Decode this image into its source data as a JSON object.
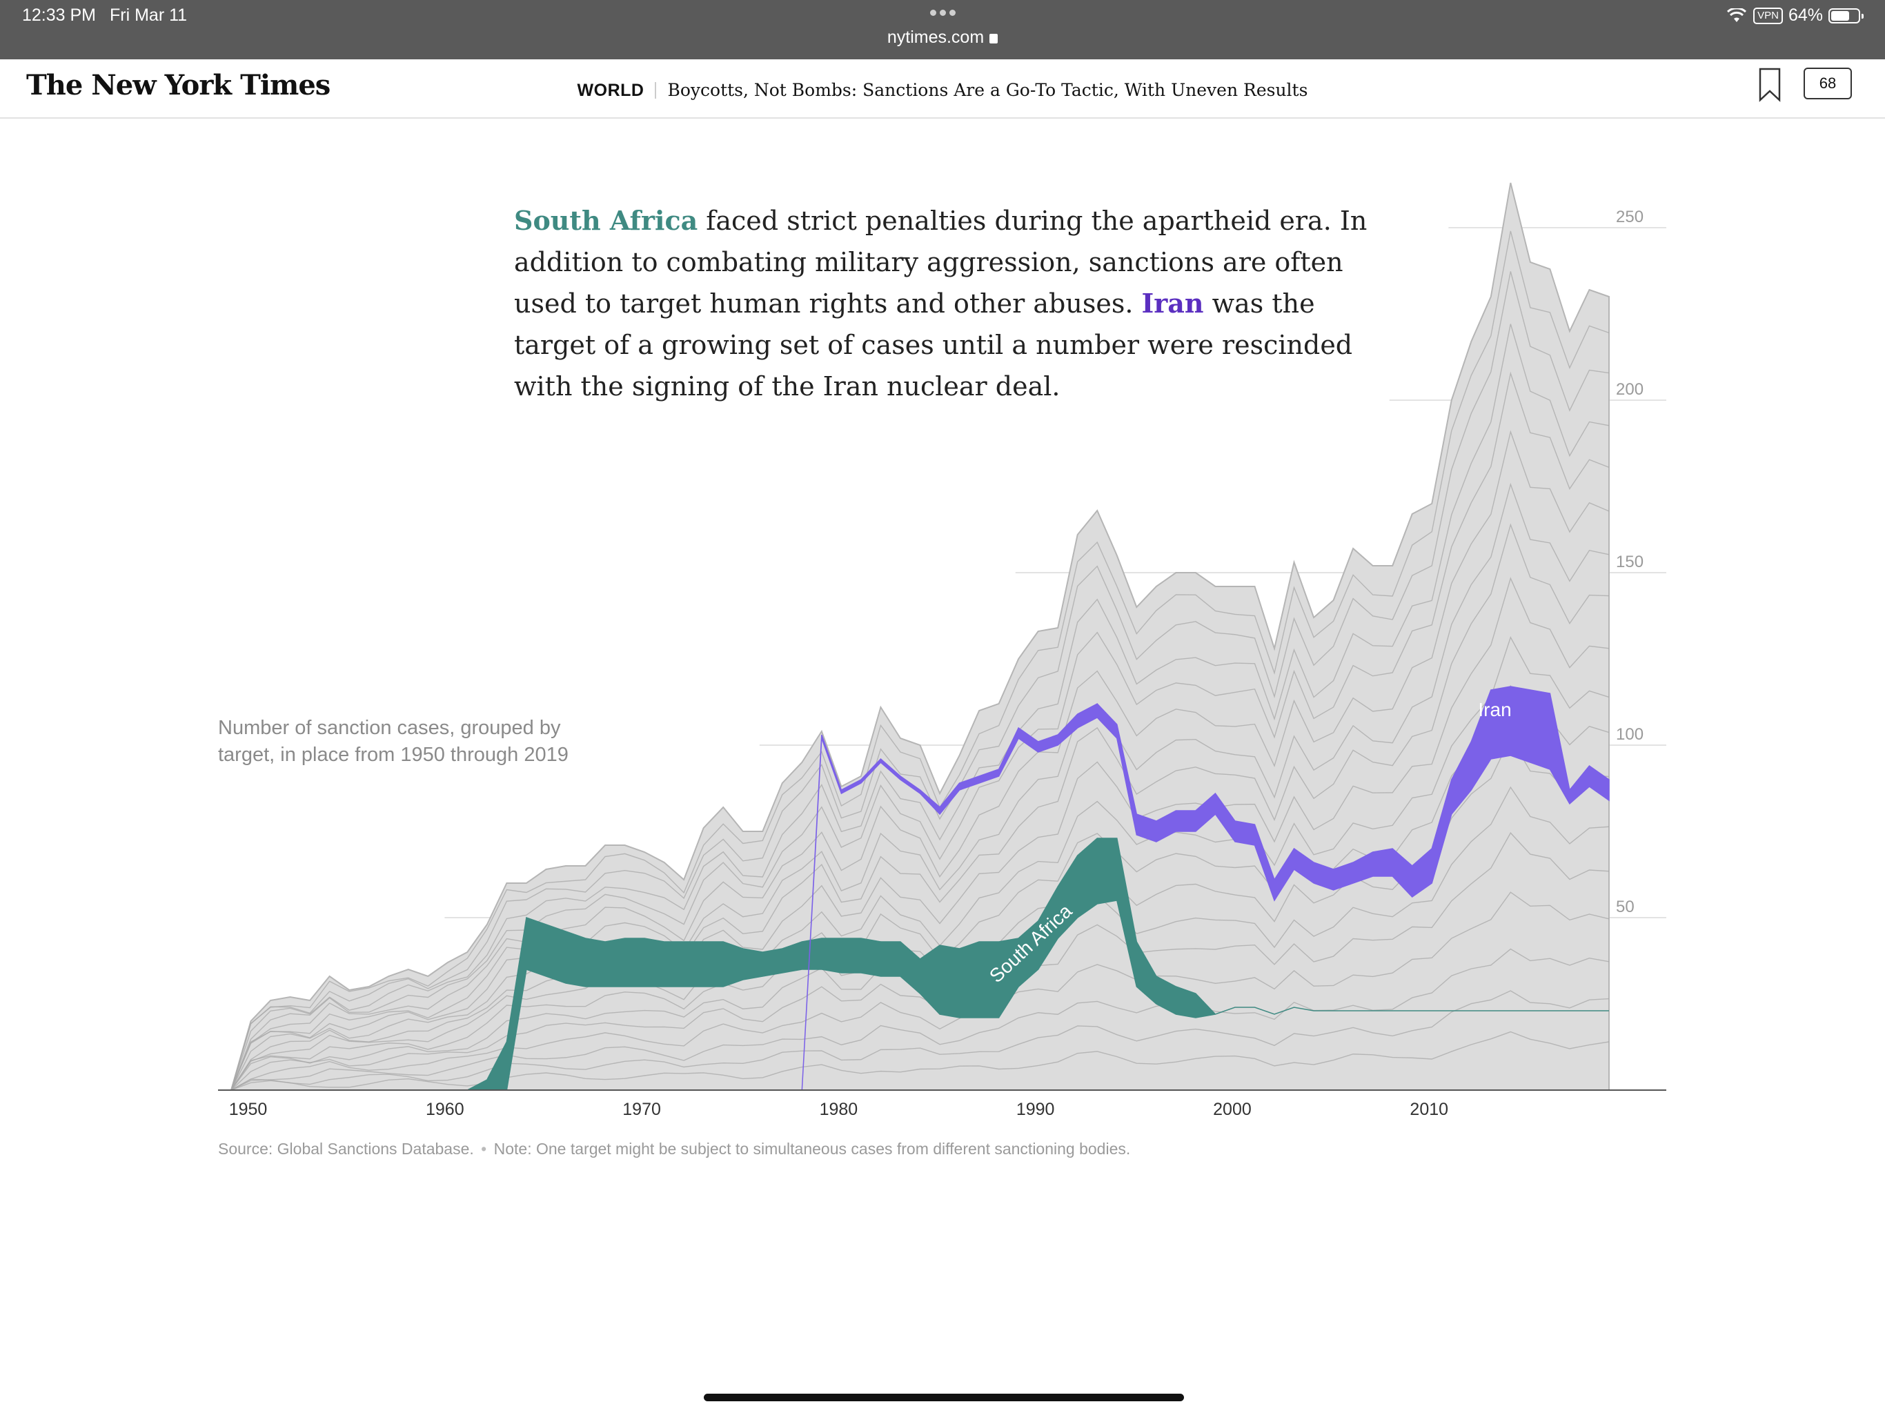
{
  "status_bar": {
    "time": "12:33 PM",
    "date": "Fri Mar 11",
    "url": "nytimes.com",
    "vpn": "VPN",
    "battery": "64%"
  },
  "header": {
    "logo": "The New York Times",
    "section": "WORLD",
    "headline": "Boycotts, Not Bombs: Sanctions Are a Go-To Tactic, With Uneven Results",
    "comment_count": "68"
  },
  "lede": {
    "south_africa": "South Africa",
    "part1": " faced strict penalties during the apartheid era. In addition to combating military aggression, sanctions are often used to target human rights and other abuses. ",
    "iran": "Iran",
    "part2": " was the target of a growing set of cases until a number were rescinded with the signing of the Iran nuclear deal."
  },
  "caption": "Number of sanction cases, grouped by target, in place from 1950 through 2019",
  "source": {
    "source_text": "Source: Global Sanctions Database.",
    "note_text": "Note: One target might be subject to simultaneous cases from different sanctioning bodies."
  },
  "colors": {
    "south_africa": "#3f8a82",
    "iran": "#7b61e8",
    "area": "#dcdcdc",
    "lines": "#a8a8a8"
  },
  "chart_data": {
    "type": "area",
    "title": "",
    "ylabel": "cases",
    "ylim": [
      0,
      260
    ],
    "xlim": [
      1949,
      2019
    ],
    "x_ticks": [
      1950,
      1960,
      1970,
      1980,
      1990,
      2000,
      2010
    ],
    "y_ticks": [
      {
        "value": 50,
        "label": "50"
      },
      {
        "value": 100,
        "label": "100"
      },
      {
        "value": 150,
        "label": "150"
      },
      {
        "value": 200,
        "label": "200"
      },
      {
        "value": 250,
        "label": "250"
      }
    ],
    "y_unit": "cases",
    "years": [
      1949,
      1950,
      1951,
      1952,
      1953,
      1954,
      1955,
      1956,
      1957,
      1958,
      1959,
      1960,
      1961,
      1962,
      1963,
      1964,
      1965,
      1966,
      1967,
      1968,
      1969,
      1970,
      1971,
      1972,
      1973,
      1974,
      1975,
      1976,
      1977,
      1978,
      1979,
      1980,
      1981,
      1982,
      1983,
      1984,
      1985,
      1986,
      1987,
      1988,
      1989,
      1990,
      1991,
      1992,
      1993,
      1994,
      1995,
      1996,
      1997,
      1998,
      1999,
      2000,
      2001,
      2002,
      2003,
      2004,
      2005,
      2006,
      2007,
      2008,
      2009,
      2010,
      2011,
      2012,
      2013,
      2014,
      2015,
      2016,
      2017,
      2018,
      2019
    ],
    "total": [
      0,
      20,
      26,
      27,
      26,
      33,
      29,
      30,
      33,
      35,
      33,
      37,
      40,
      48,
      60,
      60,
      64,
      65,
      65,
      71,
      71,
      69,
      66,
      61,
      76,
      82,
      75,
      75,
      89,
      95,
      104,
      88,
      91,
      111,
      102,
      100,
      86,
      97,
      110,
      112,
      125,
      133,
      134,
      161,
      168,
      155,
      140,
      146,
      150,
      150,
      146,
      146,
      146,
      128,
      153,
      137,
      142,
      157,
      152,
      152,
      167,
      170,
      200,
      217,
      230,
      263,
      240,
      238,
      220,
      232,
      230
    ],
    "series": [
      {
        "name": "South Africa",
        "lower": [
          0,
          0,
          0,
          0,
          0,
          0,
          0,
          0,
          0,
          0,
          0,
          0,
          0,
          0,
          0,
          35,
          33,
          31,
          30,
          30,
          30,
          30,
          30,
          30,
          30,
          30,
          32,
          33,
          34,
          35,
          35,
          34,
          34,
          33,
          33,
          28,
          22,
          21,
          21,
          21,
          30,
          35,
          44,
          50,
          54,
          55,
          30,
          25,
          22,
          21,
          22,
          24,
          24,
          22,
          24,
          23,
          23,
          23,
          23,
          23,
          23,
          23,
          23,
          23,
          23,
          23,
          23,
          23,
          23,
          23,
          23
        ],
        "values": [
          0,
          0,
          0,
          0,
          0,
          0,
          0,
          0,
          0,
          0,
          0,
          0,
          0,
          3,
          14,
          15,
          15,
          15,
          14,
          13,
          14,
          14,
          13,
          13,
          13,
          13,
          9,
          7,
          7,
          8,
          9,
          10,
          10,
          10,
          10,
          10,
          20,
          20,
          22,
          22,
          14,
          14,
          15,
          18,
          19,
          18,
          13,
          8,
          8,
          7,
          0,
          0,
          0,
          0,
          0,
          0,
          0,
          0,
          0,
          0,
          0,
          0,
          0,
          0,
          0,
          0,
          0,
          0,
          0,
          0,
          0
        ]
      },
      {
        "name": "Iran",
        "lower": [
          0,
          0,
          0,
          0,
          0,
          0,
          0,
          0,
          0,
          0,
          0,
          0,
          0,
          0,
          0,
          0,
          0,
          0,
          0,
          0,
          0,
          0,
          0,
          0,
          0,
          0,
          0,
          0,
          0,
          0,
          102,
          86,
          89,
          95,
          90,
          86,
          80,
          87,
          89,
          91,
          102,
          98,
          100,
          105,
          108,
          102,
          74,
          72,
          75,
          75,
          80,
          72,
          71,
          55,
          64,
          60,
          58,
          60,
          62,
          62,
          56,
          60,
          80,
          87,
          96,
          97,
          95,
          93,
          83,
          88,
          84
        ],
        "values": [
          0,
          0,
          0,
          0,
          0,
          0,
          0,
          0,
          0,
          0,
          0,
          0,
          0,
          0,
          0,
          0,
          0,
          0,
          0,
          0,
          0,
          0,
          0,
          0,
          0,
          0,
          0,
          0,
          0,
          0,
          1,
          1,
          1,
          1,
          1,
          1,
          2,
          2,
          2,
          2,
          3,
          3,
          3,
          4,
          4,
          4,
          6,
          6,
          6,
          6,
          6,
          6,
          6,
          6,
          6,
          6,
          6,
          6,
          7,
          8,
          9,
          10,
          10,
          14,
          20,
          20,
          21,
          22,
          4,
          6,
          6
        ]
      }
    ],
    "annotations": [
      {
        "text": "South Africa",
        "series": "South Africa"
      },
      {
        "text": "Iran",
        "series": "Iran"
      }
    ]
  }
}
